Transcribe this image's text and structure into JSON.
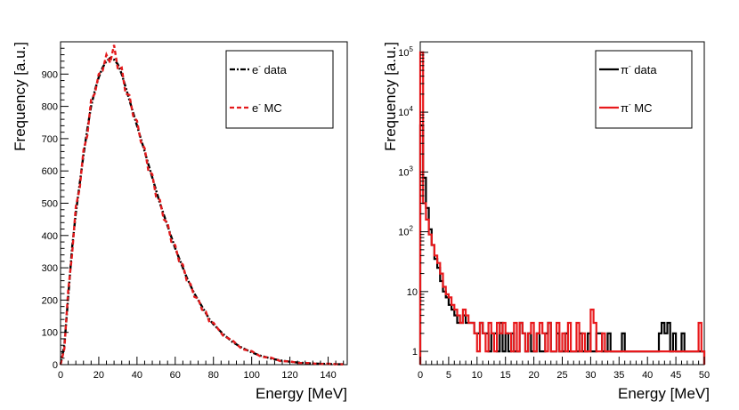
{
  "chart_data": [
    {
      "type": "line",
      "xlabel": "Energy [MeV]",
      "ylabel": "Frequency [a.u.]",
      "xlim": [
        0,
        150
      ],
      "ylim": [
        0,
        1000
      ],
      "xticks": [
        0,
        20,
        40,
        60,
        80,
        100,
        120,
        140
      ],
      "yticks": [
        0,
        100,
        200,
        300,
        400,
        500,
        600,
        700,
        800,
        900
      ],
      "legend_position": "top-right",
      "series": [
        {
          "name": "e- data",
          "label_main": "e",
          "label_sup": "-",
          "label_rest": " data",
          "color": "#000000",
          "style": "dash-dot",
          "x": [
            0,
            2,
            4,
            6,
            8,
            10,
            12,
            14,
            16,
            18,
            20,
            22,
            24,
            26,
            28,
            30,
            32,
            34,
            36,
            38,
            40,
            42,
            44,
            46,
            48,
            50,
            52,
            54,
            56,
            58,
            60,
            62,
            64,
            66,
            68,
            70,
            72,
            74,
            76,
            78,
            80,
            85,
            90,
            95,
            100,
            105,
            110,
            115,
            120,
            125,
            130,
            135,
            140,
            145,
            148
          ],
          "y": [
            0,
            60,
            210,
            360,
            470,
            560,
            650,
            730,
            800,
            850,
            890,
            920,
            940,
            950,
            945,
            930,
            900,
            860,
            820,
            780,
            740,
            700,
            660,
            620,
            580,
            540,
            500,
            465,
            430,
            395,
            360,
            330,
            300,
            270,
            245,
            220,
            200,
            180,
            160,
            140,
            125,
            95,
            70,
            52,
            38,
            27,
            19,
            13,
            9,
            6,
            4,
            3,
            2,
            1,
            1
          ]
        },
        {
          "name": "e- MC",
          "label_main": "e",
          "label_sup": "-",
          "label_rest": " MC",
          "color": "#e41a1c",
          "style": "dashed",
          "x": [
            0,
            2,
            4,
            6,
            8,
            10,
            12,
            14,
            16,
            18,
            20,
            22,
            24,
            26,
            28,
            30,
            32,
            34,
            36,
            38,
            40,
            42,
            44,
            46,
            48,
            50,
            52,
            54,
            56,
            58,
            60,
            62,
            64,
            66,
            68,
            70,
            72,
            74,
            76,
            78,
            80,
            85,
            90,
            95,
            100,
            105,
            110,
            115,
            120,
            125,
            130,
            135,
            140,
            145,
            148
          ],
          "y": [
            0,
            50,
            230,
            340,
            490,
            545,
            665,
            710,
            820,
            840,
            900,
            910,
            960,
            935,
            990,
            915,
            920,
            840,
            835,
            770,
            755,
            690,
            670,
            600,
            590,
            520,
            510,
            450,
            440,
            380,
            370,
            320,
            310,
            260,
            250,
            210,
            205,
            170,
            165,
            130,
            130,
            90,
            75,
            48,
            42,
            24,
            22,
            11,
            10,
            5,
            5,
            2,
            3,
            1,
            1
          ]
        }
      ]
    },
    {
      "type": "line",
      "xlabel": "Energy [MeV]",
      "ylabel": "Frequency [a.u.]",
      "xlim": [
        0,
        50
      ],
      "ylim": [
        0.6,
        150000
      ],
      "yscale": "log",
      "xticks": [
        0,
        5,
        10,
        15,
        20,
        25,
        30,
        35,
        40,
        45,
        50
      ],
      "yticks": [
        {
          "value": 1,
          "base": "1",
          "exp": ""
        },
        {
          "value": 10,
          "base": "10",
          "exp": ""
        },
        {
          "value": 100,
          "base": "10",
          "exp": "2"
        },
        {
          "value": 1000,
          "base": "10",
          "exp": "3"
        },
        {
          "value": 10000,
          "base": "10",
          "exp": "4"
        },
        {
          "value": 100000,
          "base": "10",
          "exp": "5"
        }
      ],
      "legend_position": "top-right",
      "series": [
        {
          "name": "π- data",
          "label_main": "π",
          "label_sup": "-",
          "label_rest": " data",
          "color": "#000000",
          "style": "step",
          "x0": 0,
          "binwidth": 0.5,
          "values": [
            6000,
            800,
            250,
            110,
            60,
            35,
            25,
            15,
            10,
            8,
            6,
            5,
            4,
            3,
            3,
            4,
            3,
            3,
            3,
            2,
            2,
            3,
            2,
            2,
            1,
            2,
            2,
            1,
            3,
            1,
            2,
            1,
            2,
            1,
            1,
            3,
            2,
            1,
            2,
            1,
            1,
            2,
            1,
            1,
            2,
            3,
            1,
            1,
            2,
            1,
            1,
            2,
            1,
            1,
            1,
            1,
            2,
            1,
            1,
            2,
            1,
            1,
            2,
            2,
            1,
            1,
            2,
            1,
            1,
            1,
            1,
            2,
            1,
            1,
            1,
            1,
            1,
            1,
            1,
            1,
            1,
            1,
            1,
            1,
            2,
            3,
            2,
            3,
            1,
            2,
            1,
            1,
            2,
            1,
            1,
            1,
            1,
            1,
            1,
            1
          ]
        },
        {
          "name": "π- MC",
          "label_main": "π",
          "label_sup": "-",
          "label_rest": " MC",
          "color": "#e8191c",
          "style": "step",
          "x0": 0,
          "binwidth": 0.5,
          "values": [
            100000,
            300,
            160,
            90,
            60,
            40,
            30,
            20,
            12,
            9,
            8,
            6,
            5,
            4,
            3,
            5,
            4,
            3,
            3,
            2,
            1,
            3,
            2,
            1,
            3,
            2,
            1,
            3,
            2,
            3,
            2,
            2,
            1,
            3,
            1,
            3,
            2,
            1,
            2,
            3,
            1,
            2,
            3,
            2,
            1,
            3,
            1,
            1,
            3,
            1,
            2,
            1,
            3,
            1,
            1,
            3,
            1,
            2,
            1,
            1,
            5,
            3,
            1,
            1,
            2,
            1,
            1,
            1,
            1,
            1,
            1,
            1,
            1,
            1,
            1,
            1,
            1,
            1,
            1,
            1,
            1,
            1,
            1,
            1,
            1,
            1,
            1,
            1,
            1,
            1,
            1,
            1,
            1,
            1,
            1,
            1,
            1,
            1,
            3,
            1
          ]
        }
      ]
    }
  ]
}
